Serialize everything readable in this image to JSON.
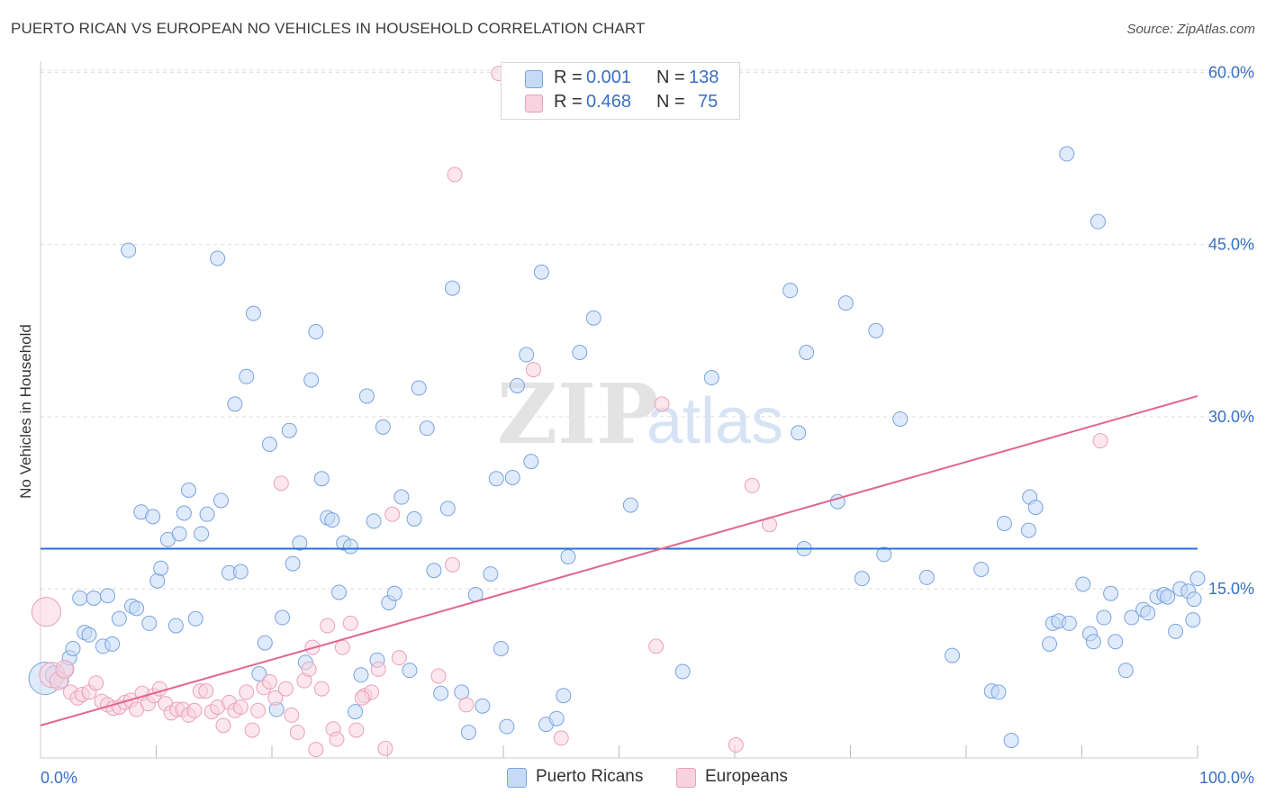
{
  "header": {
    "title": "PUERTO RICAN VS EUROPEAN NO VEHICLES IN HOUSEHOLD CORRELATION CHART",
    "source": "Source: ZipAtlas.com"
  },
  "watermark": {
    "zip": "ZIP",
    "atlas": "atlas"
  },
  "legend": {
    "r_label": "R =",
    "n_label": "N =",
    "rows": [
      {
        "r": "0.001",
        "n": "138",
        "color": "#a9c8f0"
      },
      {
        "r": "0.468",
        "n": "75",
        "color": "#f5b8cb"
      }
    ]
  },
  "bottom_legend": [
    {
      "label": "Puerto Ricans",
      "color": "#a9c8f0"
    },
    {
      "label": "Europeans",
      "color": "#f5b8cb"
    }
  ],
  "colors": {
    "blue_point_stroke": "#7aa3e0",
    "blue_point_fill": "#c5daf5",
    "pink_point_stroke": "#eba0b9",
    "pink_point_fill": "#f8d3df",
    "blue_line": "#2a6fd4",
    "pink_line": "#e0668f",
    "tick_label": "#3a6fc4",
    "grid": "#dddddd"
  },
  "chart_data": {
    "type": "scatter",
    "title": "PUERTO RICAN VS EUROPEAN NO VEHICLES IN HOUSEHOLD CORRELATION CHART",
    "xlabel": "",
    "ylabel": "No Vehicles in Household",
    "xlim": [
      0,
      100
    ],
    "ylim": [
      0,
      62
    ],
    "x_tick_labels": [
      "0.0%",
      "100.0%"
    ],
    "y_ticks": [
      15,
      30,
      45,
      60
    ],
    "y_tick_labels": [
      "15.0%",
      "30.0%",
      "45.0%",
      "60.0%"
    ],
    "grid": true,
    "legend_position": "top-center",
    "series": [
      {
        "name": "Puerto Ricans",
        "r": 0.001,
        "n": 138,
        "trend": {
          "x": [
            0,
            100
          ],
          "y": [
            18.5,
            18.5
          ]
        },
        "points": [
          [
            0.4,
            7.2,
            18
          ],
          [
            1.2,
            7.5,
            10
          ],
          [
            1.8,
            7.0,
            8
          ],
          [
            2.2,
            8.0,
            8
          ],
          [
            2.5,
            9.0,
            8
          ],
          [
            2.8,
            9.8,
            8
          ],
          [
            3.4,
            14.2,
            8
          ],
          [
            3.8,
            11.2,
            8
          ],
          [
            4.2,
            11.0,
            8
          ],
          [
            4.6,
            14.2,
            8
          ],
          [
            5.4,
            10.0,
            8
          ],
          [
            5.8,
            14.4,
            8
          ],
          [
            6.2,
            10.2,
            8
          ],
          [
            6.8,
            12.4,
            8
          ],
          [
            7.6,
            44.5,
            8
          ],
          [
            7.9,
            13.5,
            8
          ],
          [
            8.3,
            13.3,
            8
          ],
          [
            8.7,
            21.7,
            8
          ],
          [
            9.4,
            12.0,
            8
          ],
          [
            9.7,
            21.3,
            8
          ],
          [
            10.1,
            15.7,
            8
          ],
          [
            10.4,
            16.8,
            8
          ],
          [
            11.0,
            19.3,
            8
          ],
          [
            11.7,
            11.8,
            8
          ],
          [
            12.0,
            19.8,
            8
          ],
          [
            12.8,
            23.6,
            8
          ],
          [
            12.4,
            21.6,
            8
          ],
          [
            13.4,
            12.4,
            8
          ],
          [
            13.9,
            19.8,
            8
          ],
          [
            14.4,
            21.5,
            8
          ],
          [
            15.3,
            43.8,
            8
          ],
          [
            15.6,
            22.7,
            8
          ],
          [
            16.3,
            16.4,
            8
          ],
          [
            16.8,
            31.1,
            8
          ],
          [
            17.3,
            16.5,
            8
          ],
          [
            17.8,
            33.5,
            8
          ],
          [
            18.4,
            39.0,
            8
          ],
          [
            18.9,
            7.6,
            8
          ],
          [
            19.4,
            10.3,
            8
          ],
          [
            19.8,
            27.6,
            8
          ],
          [
            20.4,
            4.5,
            8
          ],
          [
            20.9,
            12.5,
            8
          ],
          [
            21.5,
            28.8,
            8
          ],
          [
            21.8,
            17.2,
            8
          ],
          [
            22.4,
            19.0,
            8
          ],
          [
            22.9,
            8.6,
            8
          ],
          [
            23.4,
            33.2,
            8
          ],
          [
            23.8,
            37.4,
            8
          ],
          [
            24.3,
            24.6,
            8
          ],
          [
            24.8,
            21.2,
            8
          ],
          [
            25.2,
            21.0,
            8
          ],
          [
            25.8,
            14.7,
            8
          ],
          [
            26.2,
            19.0,
            8
          ],
          [
            26.8,
            18.7,
            8
          ],
          [
            27.2,
            4.3,
            8
          ],
          [
            27.7,
            7.5,
            8
          ],
          [
            28.2,
            31.8,
            8
          ],
          [
            28.8,
            20.9,
            8
          ],
          [
            29.1,
            8.8,
            8
          ],
          [
            29.6,
            29.1,
            8
          ],
          [
            30.1,
            13.8,
            8
          ],
          [
            30.6,
            14.6,
            8
          ],
          [
            31.2,
            23.0,
            8
          ],
          [
            31.9,
            7.9,
            8
          ],
          [
            32.3,
            21.1,
            8
          ],
          [
            32.7,
            32.5,
            8
          ],
          [
            33.4,
            29.0,
            8
          ],
          [
            34.0,
            16.6,
            8
          ],
          [
            34.6,
            5.9,
            8
          ],
          [
            35.2,
            22.0,
            8
          ],
          [
            35.6,
            41.2,
            8
          ],
          [
            36.4,
            6.0,
            8
          ],
          [
            37.0,
            2.5,
            8
          ],
          [
            37.6,
            14.5,
            8
          ],
          [
            38.2,
            4.8,
            8
          ],
          [
            38.9,
            16.3,
            8
          ],
          [
            39.4,
            24.6,
            8
          ],
          [
            39.8,
            9.8,
            8
          ],
          [
            40.3,
            3.0,
            8
          ],
          [
            40.8,
            24.7,
            8
          ],
          [
            41.2,
            32.7,
            8
          ],
          [
            42.0,
            35.4,
            8
          ],
          [
            42.4,
            26.1,
            8
          ],
          [
            43.3,
            42.6,
            8
          ],
          [
            43.7,
            3.2,
            8
          ],
          [
            44.6,
            3.7,
            8
          ],
          [
            45.2,
            5.7,
            8
          ],
          [
            45.6,
            17.8,
            8
          ],
          [
            46.6,
            35.6,
            8
          ],
          [
            47.8,
            38.6,
            8
          ],
          [
            51.0,
            22.3,
            8
          ],
          [
            55.5,
            7.8,
            8
          ],
          [
            58.0,
            33.4,
            8
          ],
          [
            64.8,
            41.0,
            8
          ],
          [
            65.5,
            28.6,
            8
          ],
          [
            66.0,
            18.5,
            8
          ],
          [
            66.2,
            35.6,
            8
          ],
          [
            68.9,
            22.6,
            8
          ],
          [
            69.6,
            39.9,
            8
          ],
          [
            71.0,
            15.9,
            8
          ],
          [
            72.2,
            37.5,
            8
          ],
          [
            72.9,
            18.0,
            8
          ],
          [
            74.3,
            29.8,
            8
          ],
          [
            76.6,
            16.0,
            8
          ],
          [
            78.8,
            9.2,
            8
          ],
          [
            81.3,
            16.7,
            8
          ],
          [
            82.2,
            6.1,
            8
          ],
          [
            82.8,
            6.0,
            8
          ],
          [
            83.3,
            20.7,
            8
          ],
          [
            83.9,
            1.8,
            8
          ],
          [
            85.5,
            23.0,
            8
          ],
          [
            85.4,
            20.1,
            8
          ],
          [
            86.0,
            22.1,
            8
          ],
          [
            87.2,
            10.2,
            8
          ],
          [
            87.5,
            12.0,
            8
          ],
          [
            88.0,
            12.2,
            8
          ],
          [
            88.7,
            52.9,
            8
          ],
          [
            88.9,
            12.0,
            8
          ],
          [
            90.1,
            15.4,
            8
          ],
          [
            90.7,
            11.1,
            8
          ],
          [
            91.0,
            10.4,
            8
          ],
          [
            91.4,
            47.0,
            8
          ],
          [
            91.9,
            12.5,
            8
          ],
          [
            92.5,
            14.6,
            8
          ],
          [
            92.9,
            10.4,
            8
          ],
          [
            93.8,
            7.9,
            8
          ],
          [
            94.3,
            12.5,
            8
          ],
          [
            95.3,
            13.2,
            8
          ],
          [
            95.7,
            12.9,
            8
          ],
          [
            96.5,
            14.3,
            8
          ],
          [
            97.1,
            14.5,
            8
          ],
          [
            97.4,
            14.3,
            8
          ],
          [
            98.1,
            11.3,
            8
          ],
          [
            98.5,
            15.0,
            8
          ],
          [
            99.2,
            14.8,
            8
          ],
          [
            99.7,
            14.1,
            8
          ],
          [
            99.6,
            12.3,
            8
          ],
          [
            100.0,
            15.9,
            8
          ]
        ]
      },
      {
        "name": "Europeans",
        "r": 0.468,
        "n": 75,
        "trend": {
          "x": [
            0,
            100
          ],
          "y": [
            3.1,
            31.8
          ]
        },
        "points": [
          [
            0.5,
            13.0,
            16
          ],
          [
            1.0,
            7.5,
            14
          ],
          [
            1.6,
            7.0,
            10
          ],
          [
            2.1,
            8.0,
            10
          ],
          [
            2.6,
            6.0,
            8
          ],
          [
            3.2,
            5.5,
            8
          ],
          [
            3.6,
            5.8,
            8
          ],
          [
            4.2,
            6.0,
            8
          ],
          [
            4.8,
            6.8,
            8
          ],
          [
            5.3,
            5.2,
            8
          ],
          [
            5.8,
            4.9,
            8
          ],
          [
            6.3,
            4.6,
            8
          ],
          [
            6.8,
            4.7,
            8
          ],
          [
            7.3,
            5.1,
            8
          ],
          [
            7.8,
            5.3,
            8
          ],
          [
            8.3,
            4.5,
            8
          ],
          [
            8.8,
            5.9,
            8
          ],
          [
            9.3,
            5.0,
            8
          ],
          [
            9.8,
            5.7,
            8
          ],
          [
            10.3,
            6.3,
            8
          ],
          [
            10.8,
            5.0,
            8
          ],
          [
            11.3,
            4.2,
            8
          ],
          [
            11.8,
            4.5,
            8
          ],
          [
            12.3,
            4.5,
            8
          ],
          [
            12.8,
            4.0,
            8
          ],
          [
            13.3,
            4.4,
            8
          ],
          [
            13.8,
            6.1,
            8
          ],
          [
            14.3,
            6.1,
            8
          ],
          [
            14.8,
            4.3,
            8
          ],
          [
            15.3,
            4.7,
            8
          ],
          [
            15.8,
            3.1,
            8
          ],
          [
            16.3,
            5.1,
            8
          ],
          [
            16.8,
            4.4,
            8
          ],
          [
            17.3,
            4.7,
            8
          ],
          [
            17.8,
            6.0,
            8
          ],
          [
            18.3,
            2.7,
            8
          ],
          [
            18.8,
            4.4,
            8
          ],
          [
            19.3,
            6.4,
            8
          ],
          [
            19.8,
            6.9,
            8
          ],
          [
            20.3,
            5.5,
            8
          ],
          [
            20.8,
            24.2,
            8
          ],
          [
            21.2,
            6.3,
            8
          ],
          [
            21.7,
            4.0,
            8
          ],
          [
            22.2,
            2.5,
            8
          ],
          [
            22.8,
            7.0,
            8
          ],
          [
            23.2,
            8.0,
            8
          ],
          [
            23.5,
            9.9,
            8
          ],
          [
            23.8,
            1.0,
            8
          ],
          [
            24.3,
            6.3,
            8
          ],
          [
            24.8,
            11.8,
            8
          ],
          [
            25.3,
            2.8,
            8
          ],
          [
            25.6,
            1.9,
            8
          ],
          [
            26.1,
            9.9,
            8
          ],
          [
            26.8,
            12.0,
            8
          ],
          [
            27.3,
            2.7,
            8
          ],
          [
            28.0,
            5.7,
            8
          ],
          [
            28.6,
            6.0,
            8
          ],
          [
            29.2,
            8.0,
            8
          ],
          [
            29.8,
            1.1,
            8
          ],
          [
            30.4,
            21.5,
            8
          ],
          [
            31.0,
            9.0,
            8
          ],
          [
            34.4,
            7.4,
            8
          ],
          [
            35.6,
            17.1,
            8
          ],
          [
            39.6,
            59.9,
            8
          ],
          [
            35.8,
            51.1,
            8
          ],
          [
            42.6,
            34.1,
            8
          ],
          [
            45.0,
            2.0,
            8
          ],
          [
            53.2,
            10.0,
            8
          ],
          [
            53.7,
            31.1,
            8
          ],
          [
            60.1,
            1.4,
            8
          ],
          [
            61.5,
            24.0,
            8
          ],
          [
            63.0,
            20.6,
            8
          ],
          [
            91.6,
            27.9,
            8
          ],
          [
            36.8,
            4.9,
            8
          ],
          [
            27.8,
            5.5,
            8
          ]
        ]
      }
    ]
  }
}
